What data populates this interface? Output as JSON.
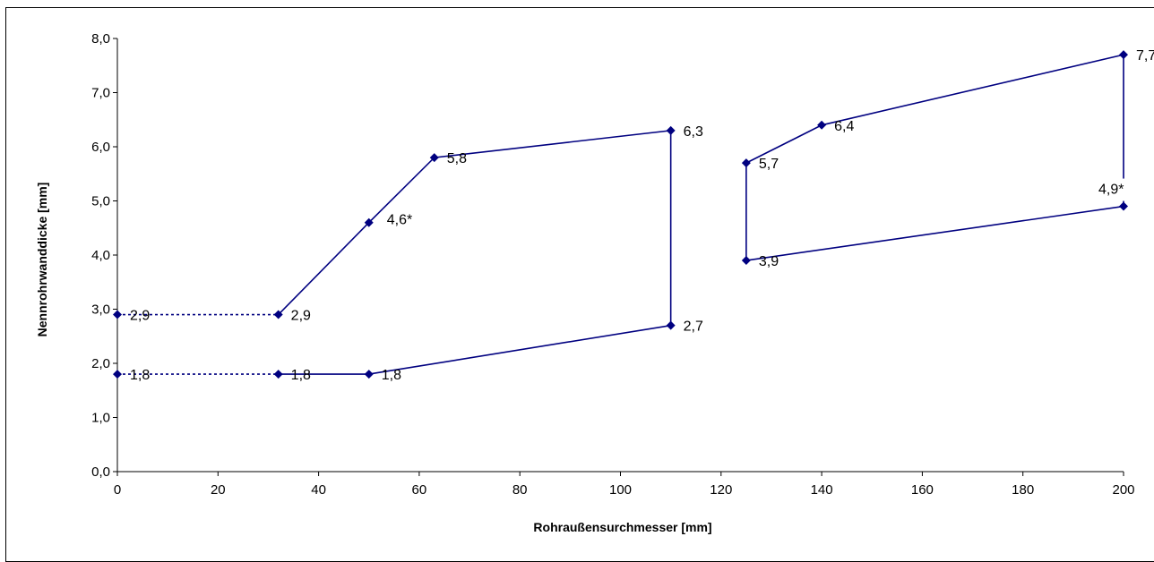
{
  "chart_data": {
    "type": "line",
    "title": "",
    "xlabel": "Rohraußensurchmesser [mm]",
    "ylabel": "Nennrohrwanddicke [mm]",
    "xlim": [
      0,
      200
    ],
    "ylim": [
      0,
      8
    ],
    "x_ticks": [
      "0",
      "20",
      "40",
      "60",
      "80",
      "100",
      "120",
      "140",
      "160",
      "180",
      "200"
    ],
    "y_ticks": [
      "0,0",
      "1,0",
      "2,0",
      "3,0",
      "4,0",
      "5,0",
      "6,0",
      "7,0",
      "8,0"
    ],
    "grid": false,
    "legend": "none",
    "color": "#000080",
    "series": [
      {
        "style": "dashed",
        "points": [
          {
            "x": 0,
            "y": 2.9
          },
          {
            "x": 32,
            "y": 2.9
          }
        ]
      },
      {
        "style": "dashed",
        "points": [
          {
            "x": 0,
            "y": 1.8
          },
          {
            "x": 32,
            "y": 1.8
          }
        ]
      },
      {
        "style": "solid",
        "points": [
          {
            "x": 32,
            "y": 2.9
          },
          {
            "x": 50,
            "y": 4.6
          },
          {
            "x": 63,
            "y": 5.8
          },
          {
            "x": 110,
            "y": 6.3
          },
          {
            "x": 110,
            "y": 2.7
          },
          {
            "x": 50,
            "y": 1.8
          },
          {
            "x": 32,
            "y": 1.8
          }
        ]
      },
      {
        "style": "solid",
        "points": [
          {
            "x": 125,
            "y": 5.7
          },
          {
            "x": 140,
            "y": 6.4
          },
          {
            "x": 200,
            "y": 7.7
          },
          {
            "x": 200,
            "y": 4.9
          },
          {
            "x": 125,
            "y": 3.9
          },
          {
            "x": 125,
            "y": 5.7
          }
        ]
      }
    ],
    "data_labels": [
      {
        "x": 0,
        "y": 2.9,
        "text": "2,9"
      },
      {
        "x": 0,
        "y": 1.8,
        "text": "1,8"
      },
      {
        "x": 32,
        "y": 2.9,
        "text": "2,9"
      },
      {
        "x": 32,
        "y": 1.8,
        "text": "1,8"
      },
      {
        "x": 50,
        "y": 1.8,
        "text": "1,8"
      },
      {
        "x": 50,
        "y": 4.6,
        "text": "4,6*"
      },
      {
        "x": 63,
        "y": 5.8,
        "text": "5,8"
      },
      {
        "x": 110,
        "y": 6.3,
        "text": "6,3"
      },
      {
        "x": 110,
        "y": 2.7,
        "text": "2,7"
      },
      {
        "x": 125,
        "y": 5.7,
        "text": "5,7"
      },
      {
        "x": 125,
        "y": 3.9,
        "text": "3,9"
      },
      {
        "x": 140,
        "y": 6.4,
        "text": "6,4"
      },
      {
        "x": 200,
        "y": 7.7,
        "text": "7,7"
      },
      {
        "x": 200,
        "y": 4.9,
        "text": "4,9*"
      }
    ]
  }
}
